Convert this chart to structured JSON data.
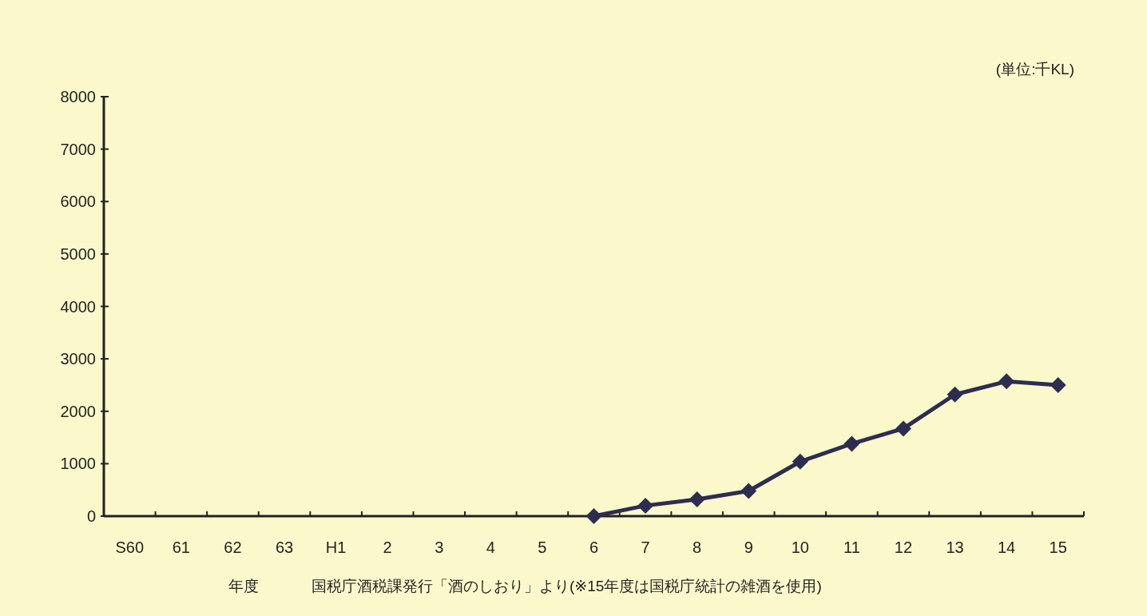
{
  "chart_data": {
    "type": "line",
    "xlabel": "年度",
    "categories": [
      "S60",
      "61",
      "62",
      "63",
      "H1",
      "2",
      "3",
      "4",
      "5",
      "6",
      "7",
      "8",
      "9",
      "10",
      "11",
      "12",
      "13",
      "14",
      "15"
    ],
    "series": [
      {
        "color": "#2e2d4f",
        "values": [
          null,
          null,
          null,
          null,
          null,
          null,
          null,
          null,
          null,
          0,
          200,
          320,
          480,
          1040,
          1380,
          1670,
          2320,
          2570,
          2500
        ]
      }
    ],
    "ylim": [
      0,
      8000
    ],
    "yticks": [
      0,
      1000,
      2000,
      3000,
      4000,
      5000,
      6000,
      7000,
      8000
    ],
    "marker": "diamond",
    "line_style": "solid",
    "grid": false,
    "annotations": [
      "(単位:千KL)",
      "国税庁酒税課発行「酒のしおり」より(※15年度は国税庁統計の雑酒を使用)"
    ]
  }
}
